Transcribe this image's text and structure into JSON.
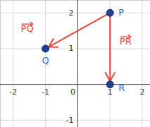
{
  "chart_data": {
    "type": "scatter",
    "xlim": [
      -2.4,
      2.25
    ],
    "ylim": [
      -1.2,
      2.35
    ],
    "xticks": [
      -2,
      -1,
      0,
      1,
      2
    ],
    "yticks": [
      -1,
      0,
      1,
      2
    ],
    "grid": true,
    "points": {
      "labels": [
        "P",
        "Q",
        "R"
      ],
      "x": [
        1,
        -1,
        1
      ],
      "y": [
        2,
        1,
        0
      ],
      "color": "#1f3f8f"
    },
    "vectors": {
      "labels": [
        "PQ",
        "PR"
      ],
      "from": [
        "P",
        "P"
      ],
      "to": [
        "Q",
        "R"
      ],
      "color": "#e8453c"
    }
  }
}
